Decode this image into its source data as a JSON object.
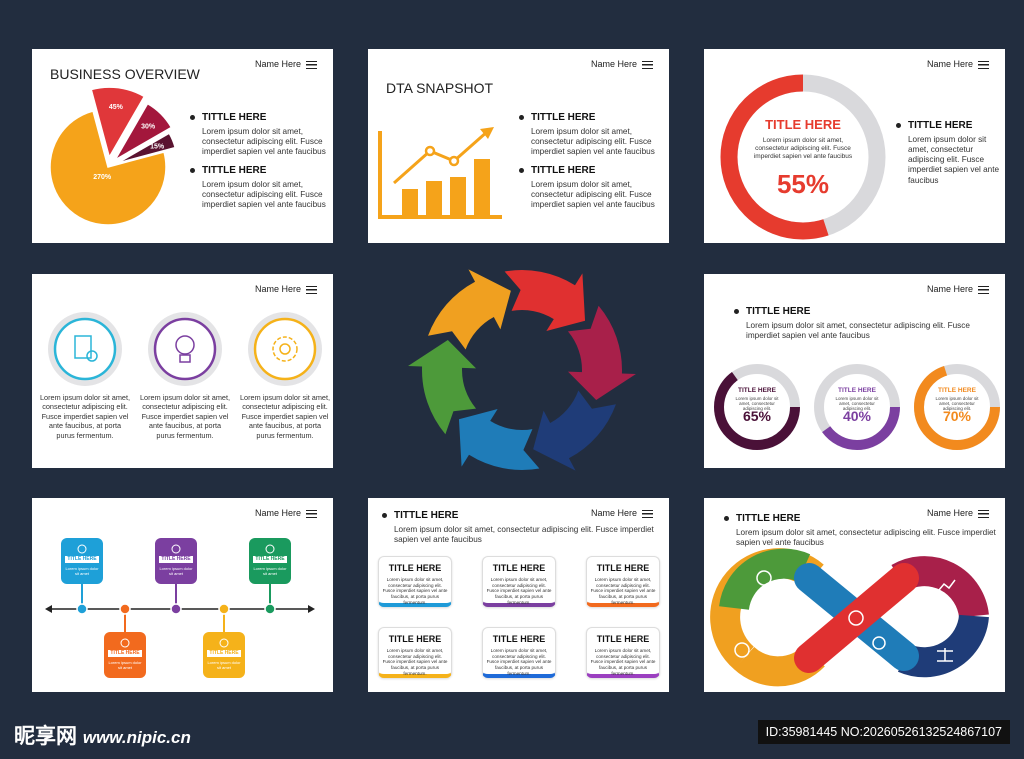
{
  "overview": {
    "name": "Name Here",
    "title": "BUSINESS OVERVIEW",
    "pie": {
      "values": [
        45,
        30,
        15,
        270
      ],
      "value_labels": [
        "45%",
        "30%",
        "15%",
        "270%"
      ],
      "colors": [
        "#e0373a",
        "#a3173c",
        "#5a1330",
        "#f5a31a"
      ]
    },
    "items": [
      {
        "title": "TITTLE HERE",
        "text": "Lorem ipsum dolor sit amet, consectetur adipiscing elit. Fusce imperdiet sapien vel ante faucibus"
      },
      {
        "title": "TITTLE HERE",
        "text": "Lorem ipsum dolor sit amet, consectetur adipiscing elit. Fusce imperdiet sapien vel ante faucibus"
      }
    ]
  },
  "snapshot": {
    "name": "Name Here",
    "title": "DTA SNAPSHOT",
    "items": [
      {
        "title": "TITTLE HERE",
        "text": "Lorem ipsum dolor sit amet, consectetur adipiscing elit. Fusce imperdiet sapien vel ante faucibus"
      },
      {
        "title": "TITTLE HERE",
        "text": "Lorem ipsum dolor sit amet, consectetur adipiscing elit. Fusce imperdiet sapien vel ante faucibus"
      }
    ]
  },
  "ring": {
    "name": "Name Here",
    "title": "TITLE HERE",
    "text": "Lorem ipsum dolor sit amet, consectetur adipiscing elit. Fusce imperdiet sapien vel ante faucibus",
    "value": 55,
    "value_label": "55%",
    "color": "#e63b2e",
    "item": {
      "title": "TITTLE HERE",
      "text": "Lorem ipsum dolor sit amet, consectetur adipiscing elit. Fusce imperdiet sapien vel ante faucibus"
    }
  },
  "icons": {
    "name": "Name Here",
    "texts": [
      "Lorem ipsum dolor sit amet, consectetur adipiscing elit. Fusce imperdiet sapien vel ante faucibus, at porta purus fermentum.",
      "Lorem ipsum dolor sit amet, consectetur adipiscing elit. Fusce imperdiet sapien vel ante faucibus, at porta purus fermentum.",
      "Lorem ipsum dolor sit amet, consectetur adipiscing elit. Fusce imperdiet sapien vel ante faucibus, at porta purus fermentum."
    ]
  },
  "gauges": {
    "name": "Name Here",
    "item": {
      "title": "TITTLE HERE",
      "text": "Lorem ipsum dolor sit amet, consectetur adipiscing elit. Fusce imperdiet sapien vel ante faucibus"
    },
    "gauges": [
      {
        "title": "TITLE HERE",
        "text": "Lorem ipsum dolor sit amet, consectetur adipiscing elit.",
        "value": 65,
        "value_label": "65%",
        "color": "#4a1138"
      },
      {
        "title": "TITLE HERE",
        "text": "Lorem ipsum dolor sit amet, consectetur adipiscing elit.",
        "value": 40,
        "value_label": "40%",
        "color": "#7b3fa0"
      },
      {
        "title": "TITLE HERE",
        "text": "Lorem ipsum dolor sit amet, consectetur adipiscing elit.",
        "value": 70,
        "value_label": "70%",
        "color": "#f28a1e"
      }
    ]
  },
  "timeline": {
    "name": "Name Here",
    "steps": [
      {
        "title": "TITLE HERE",
        "text": "Lorem ipsum dolor sit amet",
        "color": "#1ea0d8"
      },
      {
        "title": "TITLE HERE",
        "text": "Lorem ipsum dolor sit amet",
        "color": "#f26a1e"
      },
      {
        "title": "TITLE HERE",
        "text": "Lorem ipsum dolor sit amet",
        "color": "#7b3fa0"
      },
      {
        "title": "TITLE HERE",
        "text": "Lorem ipsum dolor sit amet",
        "color": "#f5b21a"
      },
      {
        "title": "TITLE HERE",
        "text": "Lorem ipsum dolor sit amet",
        "color": "#1a9a5e"
      }
    ]
  },
  "boxes": {
    "name": "Name Here",
    "item": {
      "title": "TITTLE HERE",
      "text": "Lorem ipsum dolor sit amet, consectetur adipiscing elit. Fusce imperdiet sapien vel ante faucibus"
    },
    "boxes": [
      {
        "title": "TITLE HERE",
        "text": "Lorem ipsum dolor sit amet, consectetur adipiscing elit. Fusce imperdiet sapien vel ante faucibus, at porta purus fermentum.",
        "color": "#1e9ad8"
      },
      {
        "title": "TITLE HERE",
        "text": "Lorem ipsum dolor sit amet, consectetur adipiscing elit. Fusce imperdiet sapien vel ante faucibus, at porta purus fermentum.",
        "color": "#7b3fa0"
      },
      {
        "title": "TITLE HERE",
        "text": "Lorem ipsum dolor sit amet, consectetur adipiscing elit. Fusce imperdiet sapien vel ante faucibus, at porta purus fermentum.",
        "color": "#f26a1e"
      },
      {
        "title": "TITLE HERE",
        "text": "Lorem ipsum dolor sit amet, consectetur adipiscing elit. Fusce imperdiet sapien vel ante faucibus, at porta purus fermentum.",
        "color": "#f5b21a"
      },
      {
        "title": "TITLE HERE",
        "text": "Lorem ipsum dolor sit amet, consectetur adipiscing elit. Fusce imperdiet sapien vel ante faucibus, at porta purus fermentum.",
        "color": "#1e6ad8"
      },
      {
        "title": "TITLE HERE",
        "text": "Lorem ipsum dolor sit amet, consectetur adipiscing elit. Fusce imperdiet sapien vel ante faucibus, at porta purus fermentum.",
        "color": "#9b3fc0"
      }
    ]
  },
  "infinity": {
    "name": "Name Here",
    "item": {
      "title": "TITTLE HERE",
      "text": "Lorem ipsum dolor sit amet, consectetur adipiscing elit. Fusce imperdiet sapien vel ante faucibus"
    }
  },
  "footer": {
    "logo": "昵享网",
    "site": "www.nipic.cn",
    "id": "ID:35981445 NO:20260526132524867107"
  }
}
